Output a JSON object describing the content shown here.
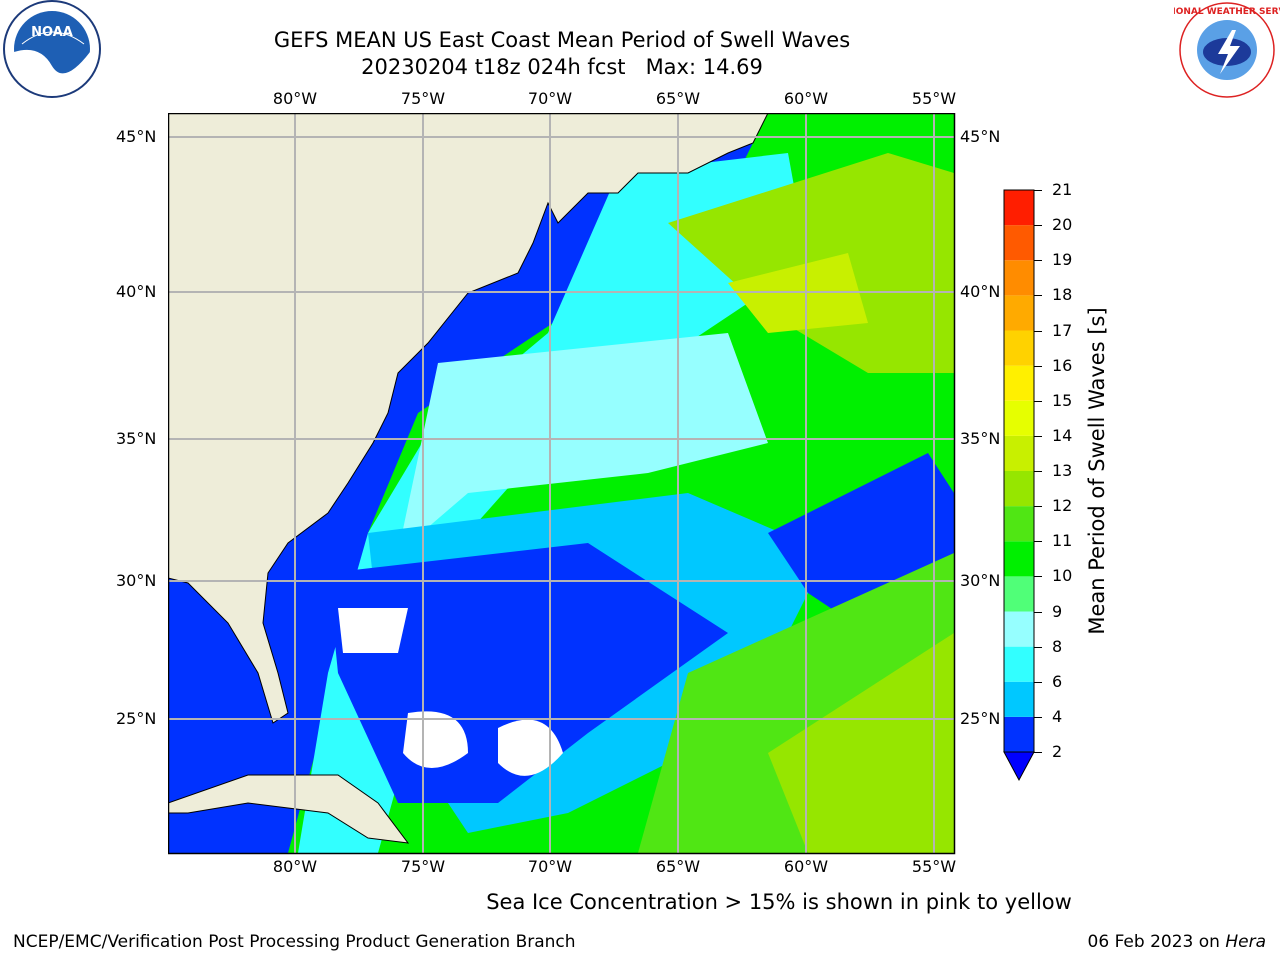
{
  "header": {
    "title": "GEFS MEAN US East Coast Mean Period of Swell Waves",
    "subtitle": "20230204 t18z 024h fcst   Max: 14.69",
    "noaa_logo_text": "NOAA",
    "nws_logo_text": "NATIONAL WEATHER SERVICE"
  },
  "map": {
    "lon_labels": [
      "80°W",
      "75°W",
      "70°W",
      "65°W",
      "60°W",
      "55°W"
    ],
    "lat_labels": [
      "45°N",
      "40°N",
      "35°N",
      "30°N",
      "25°N"
    ],
    "land_color": "#eeedd9",
    "ocean_color": "#ffffff"
  },
  "colorbar": {
    "label": "Mean Period of Swell Waves [s]",
    "ticks": [
      "2",
      "4",
      "6",
      "8",
      "9",
      "10",
      "11",
      "12",
      "13",
      "14",
      "15",
      "16",
      "17",
      "18",
      "19",
      "20",
      "21"
    ],
    "colors": [
      "#0032ff",
      "#00c8ff",
      "#32ffff",
      "#96ffff",
      "#50ff78",
      "#00f000",
      "#50e614",
      "#96e600",
      "#c8f000",
      "#e6ff00",
      "#fff000",
      "#ffd200",
      "#ffaa00",
      "#ff8c00",
      "#ff5a00",
      "#ff1e00"
    ],
    "under_color": "#0000ff"
  },
  "note": "Sea Ice Concentration > 15% is shown in pink to yellow",
  "footer": {
    "left": "NCEP/EMC/Verification Post Processing Product Generation Branch",
    "date": "06 Feb 2023 on ",
    "machine": "Hera"
  }
}
